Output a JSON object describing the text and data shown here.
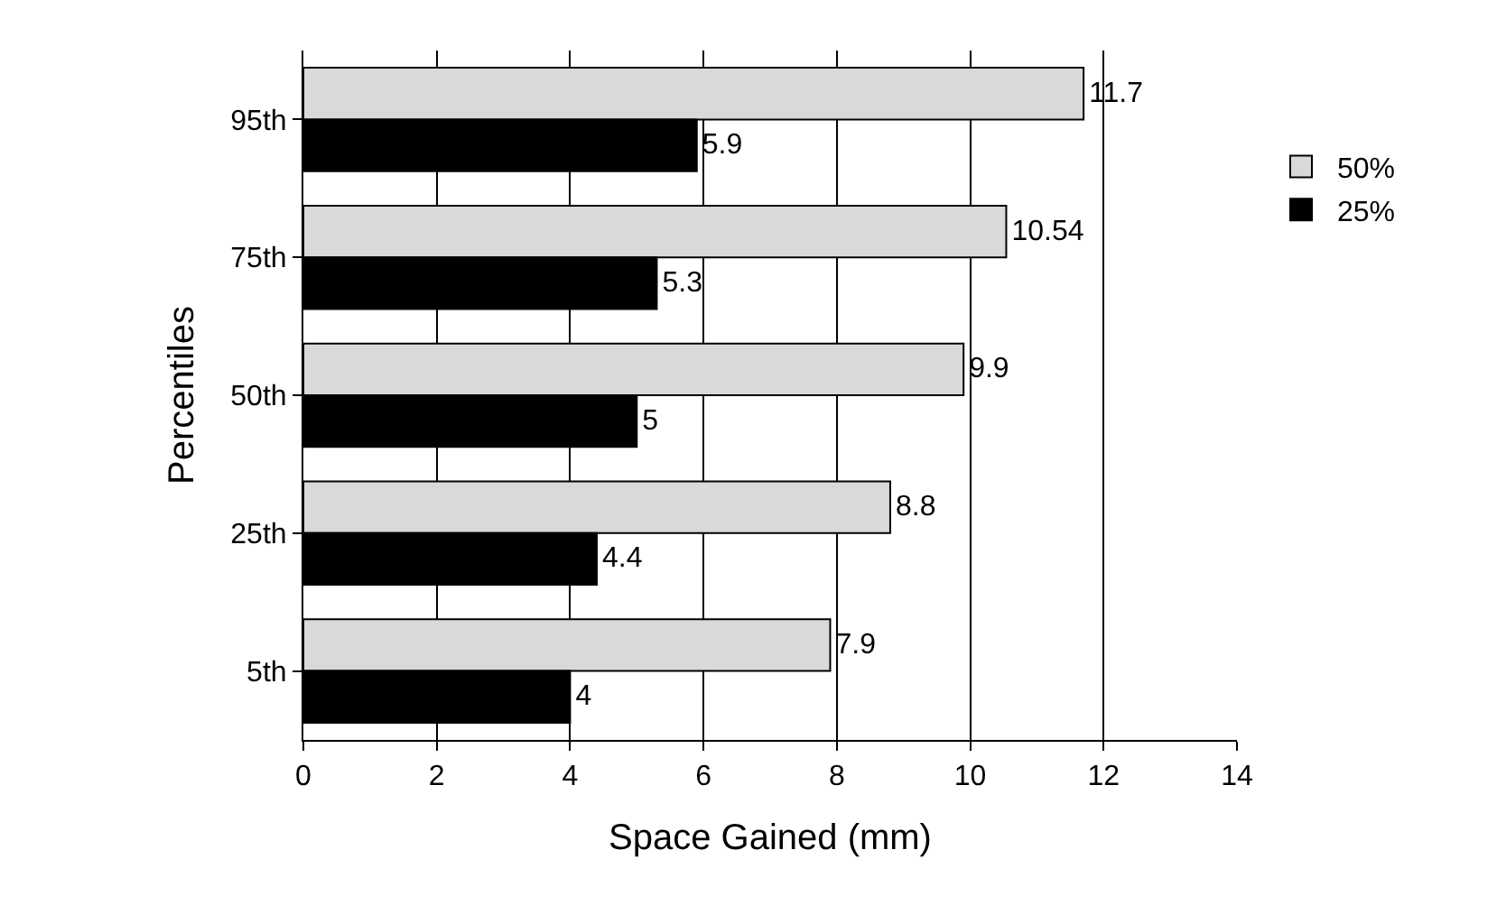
{
  "chart_data": {
    "type": "bar",
    "orientation": "horizontal",
    "xlabel": "Space Gained (mm)",
    "ylabel": "Percentiles",
    "categories": [
      "95th",
      "75th",
      "50th",
      "25th",
      "5th"
    ],
    "series": [
      {
        "name": "50%",
        "color": "#d9d9d9",
        "values": [
          11.7,
          10.54,
          9.9,
          8.8,
          7.9
        ]
      },
      {
        "name": "25%",
        "color": "#000000",
        "values": [
          5.9,
          5.3,
          5,
          4.4,
          4
        ]
      }
    ],
    "xlim": [
      0,
      14
    ],
    "xticks": [
      0,
      2,
      4,
      6,
      8,
      10,
      12,
      14
    ],
    "grid": "x",
    "legend": "right",
    "data_labels": true
  }
}
